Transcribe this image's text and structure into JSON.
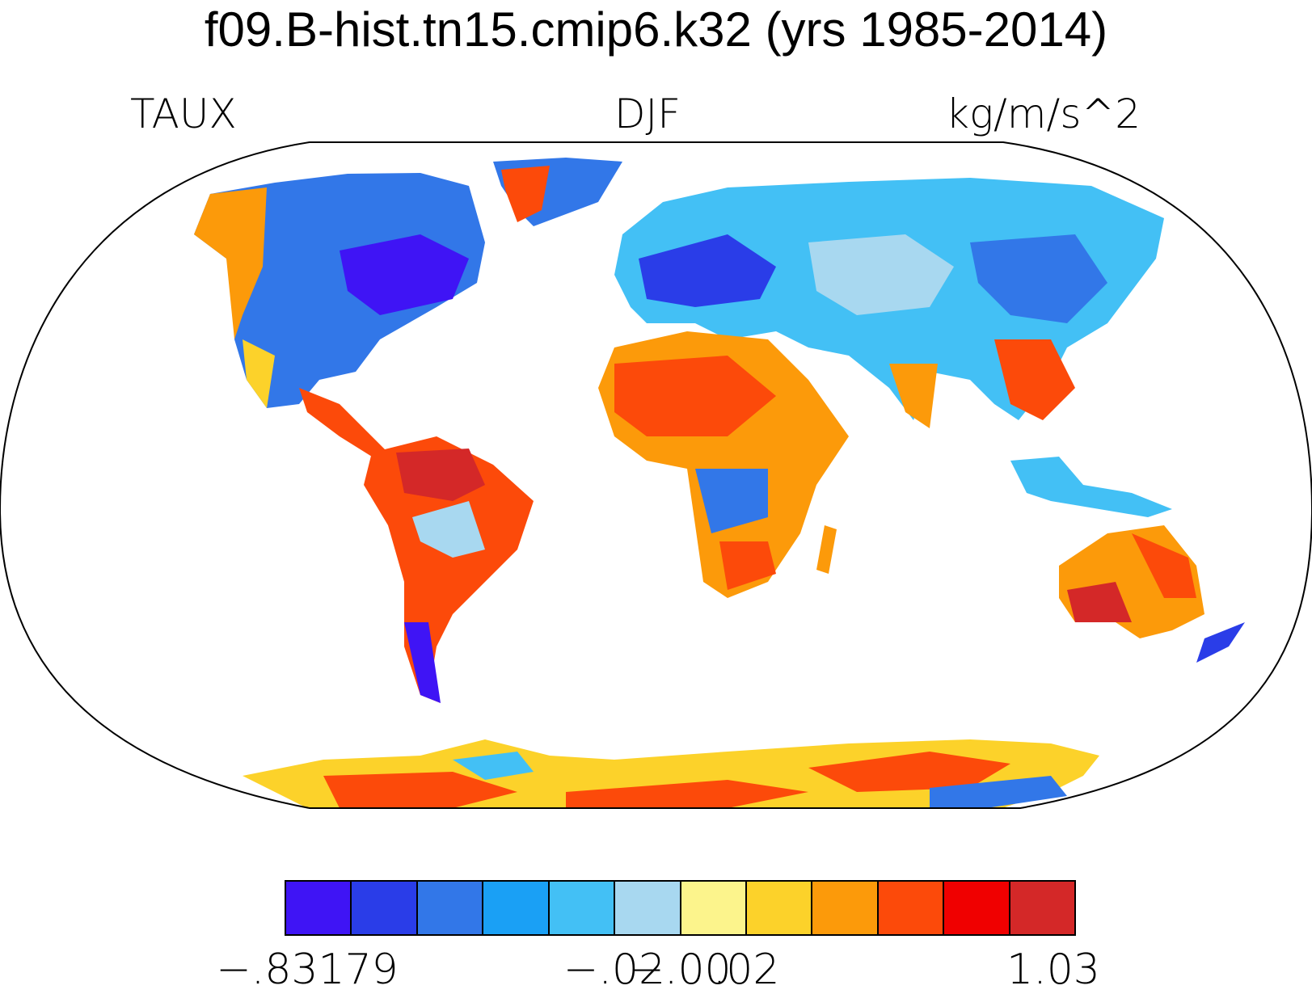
{
  "title": "f09.B-hist.tn15.cmip6.k32 (yrs 1985-2014)",
  "left_label": "TAUX",
  "center_label": "DJF",
  "right_label": "kg/m/s^2",
  "colorbar": {
    "colors": [
      "#3f14f5",
      "#2a3de8",
      "#3277e8",
      "#1aa0f5",
      "#43c0f5",
      "#a8d8f0",
      "#fcf48c",
      "#fcd22a",
      "#fc9a0a",
      "#fc4a0a",
      "#f00000",
      "#d42828"
    ],
    "tick_labels": [
      "−.83179",
      "−.02",
      "−.00",
      ".02",
      "1.03"
    ]
  }
}
